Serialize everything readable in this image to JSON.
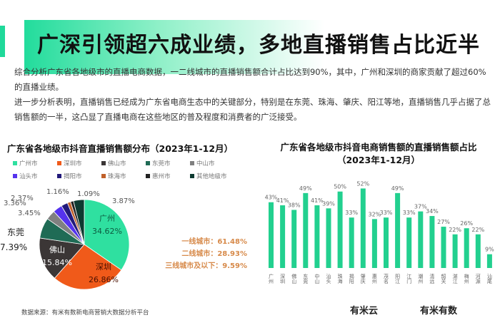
{
  "header": {
    "title": "广深引领超六成业绩，多地直播销售占比近半"
  },
  "body": {
    "p1": "综合分析广东省各地级市的直播电商数据，一二线城市的直播销售额合计占比达到90%，其中，广州和深圳的商家贡献了超过60%的直播业绩。",
    "p2": "进一步分析表明，直播销售已经成为广东省电商生态中的关键部分，特别是在东莞、珠海、肇庆、阳江等地，直播销售几乎占据了总销售额的一半，这凸显了直播电商在这些地区的普及程度和消费者的广泛接受。"
  },
  "tiers": [
    "一线城市：61.48%",
    "二线城市：28.93%",
    "三线城市及以下：9.59%"
  ],
  "source": "数据来源：有米有数新电商营销大数据分析平台",
  "logos": [
    "有米云",
    "有米有数"
  ],
  "chart_data": [
    {
      "type": "pie",
      "title": "广东省各地级市抖音直播销售额分布（2023年1-12月）",
      "legend": [
        "广州市",
        "深圳市",
        "佛山市",
        "东莞市",
        "中山市",
        "汕头市",
        "揭阳市",
        "珠海市",
        "惠州市",
        "其他地级市"
      ],
      "categories": [
        "广州",
        "深圳",
        "佛山",
        "东莞",
        "中山",
        "汕头",
        "揭阳",
        "珠海",
        "惠州",
        "其他地级市"
      ],
      "values": [
        34.62,
        26.86,
        15.84,
        7.39,
        3.45,
        3.36,
        2.37,
        1.16,
        1.09,
        3.87
      ],
      "labels": [
        "34.62%",
        "26.86%",
        "15.84%",
        "7.39%",
        "3.45%",
        "3.36%",
        "2.37%",
        "1.16%",
        "1.09%",
        "3.87%"
      ],
      "colors": [
        "#2fe0a0",
        "#f05a1a",
        "#3b3636",
        "#1f6b55",
        "#808080",
        "#5533ee",
        "#221a7a",
        "#c0602a",
        "#222222",
        "#0d3a30"
      ]
    },
    {
      "type": "bar",
      "title": "广东省各地级市抖音电商销售额的直播销售额占比",
      "subtitle": "（2023年1-12月）",
      "categories": [
        "广州",
        "深圳",
        "佛山",
        "东莞",
        "中山",
        "汕头",
        "珠海",
        "揭阳",
        "肇庆",
        "惠州",
        "茂名",
        "阳江",
        "江门",
        "潮州",
        "清远",
        "韶关",
        "湛江",
        "梅州",
        "河源",
        "汕尾"
      ],
      "values": [
        43,
        41,
        38,
        49,
        41,
        39,
        50,
        33,
        52,
        32,
        33,
        49,
        33,
        37,
        34,
        27,
        22,
        26,
        22,
        9
      ],
      "ylim": [
        0,
        60
      ],
      "color": "#22d08f"
    }
  ]
}
